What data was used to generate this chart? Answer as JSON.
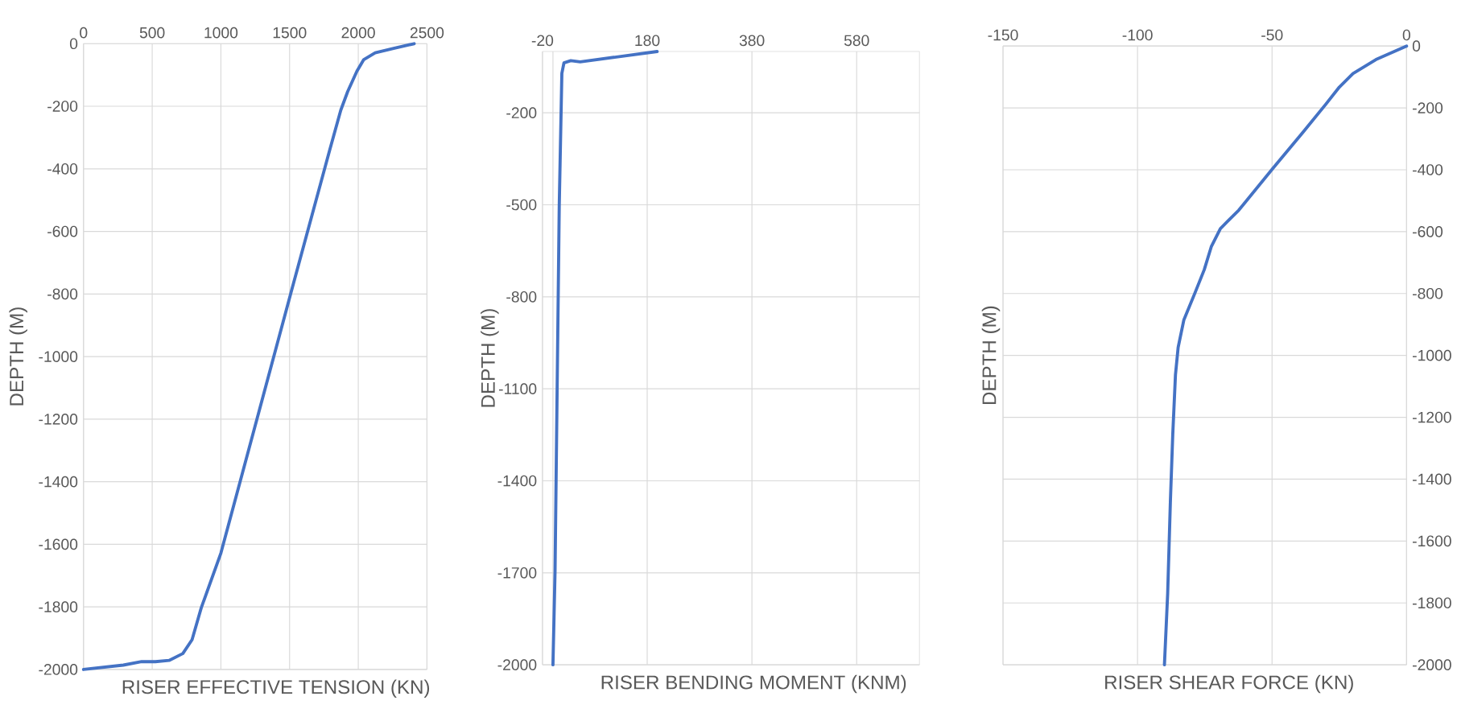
{
  "chart_data": [
    {
      "type": "line",
      "xlabel": "RISER EFFECTIVE TENSION (KN)",
      "ylabel": "DEPTH (M)",
      "xlim": [
        0,
        2500
      ],
      "ylim": [
        -2000,
        0
      ],
      "xticks": [
        0,
        500,
        1000,
        1500,
        2000,
        2500
      ],
      "yticks": [
        -2000,
        -1800,
        -1600,
        -1400,
        -1200,
        -1000,
        -800,
        -600,
        -400,
        -200,
        0
      ],
      "grid": true,
      "color": "#4472c4",
      "x": [
        2407,
        2257,
        2123,
        2040,
        1990,
        1923,
        1873,
        1790,
        1510,
        1000,
        857,
        790,
        723,
        623,
        523,
        423,
        290,
        0
      ],
      "values": [
        0,
        -15,
        -29,
        -51,
        -88,
        -153,
        -212,
        -343,
        -796,
        -1628,
        -1803,
        -1905,
        -1949,
        -1971,
        -1975,
        -1975,
        -1986,
        -2000
      ]
    },
    {
      "type": "line",
      "xlabel": "RISER BENDING MOMENT (KNM)",
      "ylabel": "DEPTH (M)",
      "xlim": [
        -20,
        700
      ],
      "ylim": [
        -2000,
        0
      ],
      "xticks": [
        -20,
        180,
        380,
        580
      ],
      "yticks": [
        -2000,
        -1700,
        -1400,
        -1100,
        -800,
        -500,
        -200
      ],
      "grid": true,
      "color": "#4472c4",
      "ref_lines": [
        {
          "axis": "x",
          "value": 0,
          "color": "#d9d9d9"
        }
      ],
      "x": [
        199,
        52,
        34,
        21,
        17,
        12,
        8,
        4,
        0
      ],
      "values": [
        0,
        -34,
        -30,
        -37,
        -71,
        -503,
        -1099,
        -1694,
        -2000
      ]
    },
    {
      "type": "line",
      "xlabel": "RISER SHEAR FORCE (KN)",
      "ylabel": "DEPTH (M)",
      "xlim": [
        -150,
        0
      ],
      "ylim": [
        -2000,
        0
      ],
      "xticks": [
        -150,
        -100,
        -50,
        0
      ],
      "yticks": [
        -2000,
        -1800,
        -1600,
        -1400,
        -1200,
        -1000,
        -800,
        -600,
        -400,
        -200,
        0
      ],
      "grid": true,
      "color": "#4472c4",
      "x": [
        0,
        -11.4,
        -19.9,
        -25,
        -30.1,
        -38.6,
        -50,
        -62.4,
        -69.2,
        -72.6,
        -75.2,
        -78.6,
        -82.8,
        -84.9,
        -85.9,
        -86.9,
        -87.8,
        -88.8,
        -90
      ],
      "values": [
        0,
        -44,
        -89,
        -133,
        -189,
        -280,
        -399,
        -531,
        -590,
        -649,
        -723,
        -797,
        -886,
        -974,
        -1063,
        -1255,
        -1476,
        -1771,
        -2000
      ]
    }
  ]
}
